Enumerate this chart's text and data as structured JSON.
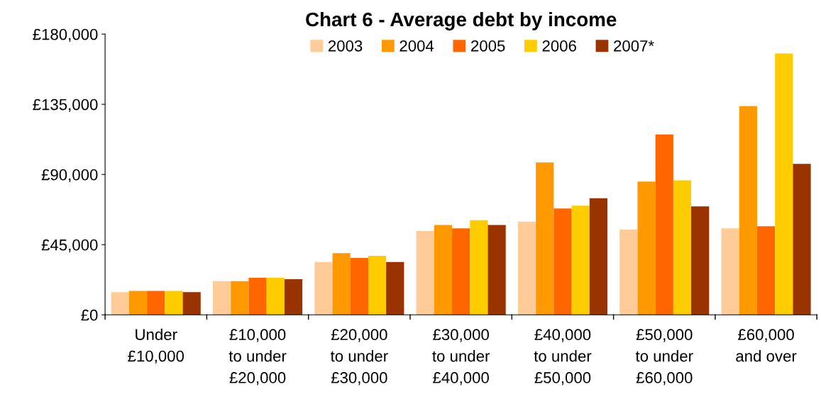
{
  "chart_data": {
    "type": "bar",
    "title": "Chart 6 - Average debt by income",
    "categories": [
      "Under\n£10,000",
      "£10,000\nto under\n£20,000",
      "£20,000\nto under\n£30,000",
      "£30,000\nto under\n£40,000",
      "£40,000\nto under\n£50,000",
      "£50,000\nto under\n£60,000",
      "£60,000\nand over"
    ],
    "series": [
      {
        "name": "2003",
        "color": "#ffcc99",
        "values": [
          14500,
          21600,
          33900,
          53700,
          59800,
          54600,
          55400
        ]
      },
      {
        "name": "2004",
        "color": "#ff9900",
        "values": [
          15400,
          21600,
          39600,
          57600,
          97700,
          85400,
          133800
        ]
      },
      {
        "name": "2005",
        "color": "#ff6600",
        "values": [
          15400,
          23800,
          36500,
          55400,
          68200,
          115700,
          56800
        ]
      },
      {
        "name": "2006",
        "color": "#ffcc00",
        "values": [
          15400,
          23800,
          37800,
          60700,
          70000,
          86200,
          167600
        ]
      },
      {
        "name": "2007*",
        "color": "#993300",
        "values": [
          14500,
          22900,
          33900,
          57600,
          74800,
          69500,
          96800
        ]
      }
    ],
    "ylim": [
      0,
      180000
    ],
    "yticks": [
      {
        "value": 0,
        "label": "£0"
      },
      {
        "value": 45000,
        "label": "£45,000"
      },
      {
        "value": 90000,
        "label": "£90,000"
      },
      {
        "value": 135000,
        "label": "£135,000"
      },
      {
        "value": 180000,
        "label": "£180,000"
      }
    ],
    "grid": false,
    "legend": "top"
  }
}
